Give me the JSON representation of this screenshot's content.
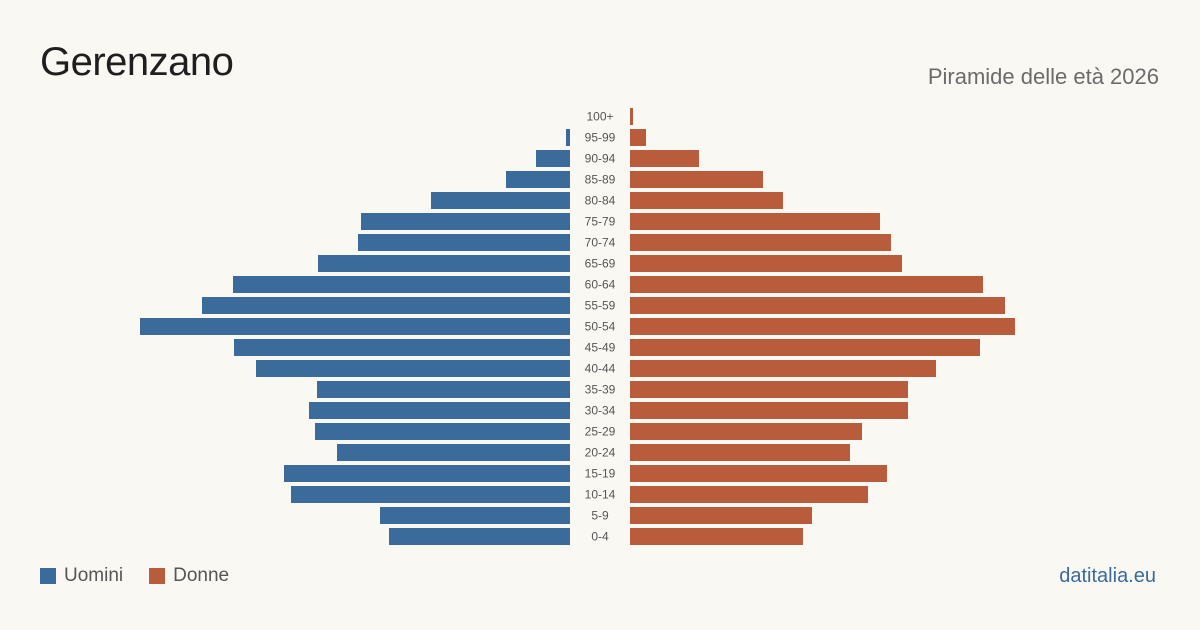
{
  "header": {
    "title": "Gerenzano",
    "subtitle": "Piramide delle età 2026"
  },
  "legend": {
    "men_label": "Uomini",
    "women_label": "Donne"
  },
  "brand": "datitalia.eu",
  "colors": {
    "men": "#3a6b9a",
    "women": "#b85c3c",
    "background": "#faf8f3"
  },
  "chart_data": {
    "type": "bar",
    "orientation": "horizontal-pyramid",
    "categories": [
      "100+",
      "95-99",
      "90-94",
      "85-89",
      "80-84",
      "75-79",
      "70-74",
      "65-69",
      "60-64",
      "55-59",
      "50-54",
      "45-49",
      "40-44",
      "35-39",
      "30-34",
      "25-29",
      "20-24",
      "15-19",
      "10-14",
      "5-9",
      "0-4"
    ],
    "series": [
      {
        "name": "Uomini",
        "values": [
          0,
          4,
          34,
          64,
          139,
          209,
          212,
          252,
          337,
          368,
          430,
          336,
          314,
          253,
          261,
          255,
          233,
          286,
          279,
          190,
          181
        ]
      },
      {
        "name": "Donne",
        "values": [
          3,
          16,
          69,
          133,
          153,
          250,
          261,
          272,
          353,
          375,
          385,
          350,
          306,
          278,
          278,
          232,
          220,
          257,
          238,
          182,
          173
        ]
      }
    ],
    "max_value": 430,
    "grid": false,
    "legend_position": "bottom-left"
  }
}
